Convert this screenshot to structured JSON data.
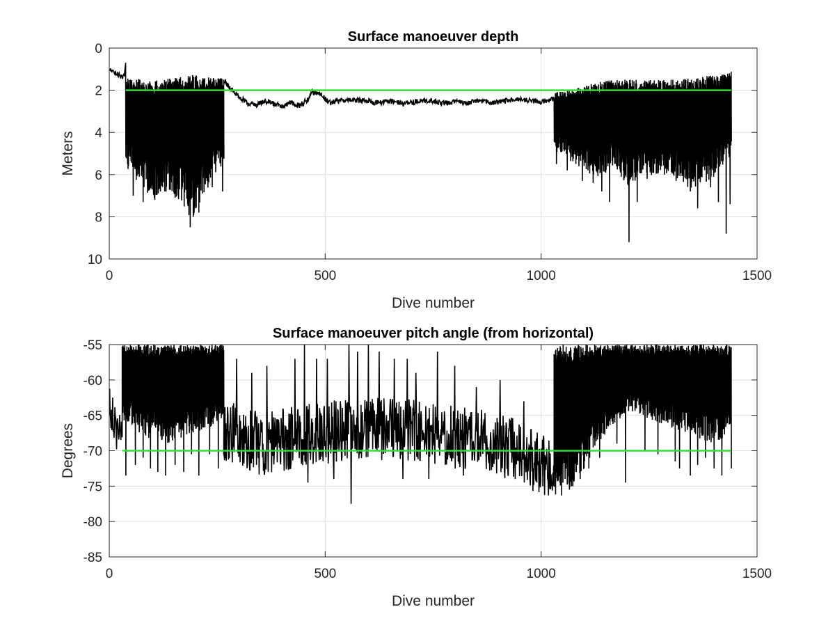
{
  "chart_data": [
    {
      "type": "line",
      "title": "Surface manoeuver depth",
      "xlabel": "Dive number",
      "ylabel": "Meters",
      "xlim": [
        0,
        1500
      ],
      "ylim": [
        0,
        10
      ],
      "y_reversed": true,
      "grid": true,
      "xticks": [
        0,
        500,
        1000,
        1500
      ],
      "yticks": [
        0,
        2,
        4,
        6,
        8,
        10
      ],
      "xtick_labels": [
        "0",
        "500",
        "1000",
        "1500"
      ],
      "ytick_labels": [
        "0",
        "2",
        "4",
        "6",
        "8",
        "10"
      ],
      "series": [
        {
          "color": "#000000",
          "segments": [
            {
              "style": "line",
              "x": [
                1,
                10,
                20,
                30,
                35,
                38
              ],
              "y": [
                1.0,
                1.15,
                1.25,
                1.35,
                1.3,
                0.7
              ]
            },
            {
              "style": "spikes",
              "x_start": 38,
              "x_end": 265,
              "upper": [
                [
                  38,
                  1.4
                ],
                [
                  80,
                  1.5
                ],
                [
                  120,
                  1.5
                ],
                [
                  160,
                  1.4
                ],
                [
                  200,
                  1.25
                ],
                [
                  240,
                  1.3
                ],
                [
                  265,
                  1.4
                ]
              ],
              "lower": [
                [
                  38,
                  5.0
                ],
                [
                  60,
                  5.5
                ],
                [
                  100,
                  6.3
                ],
                [
                  140,
                  6.0
                ],
                [
                  170,
                  6.5
                ],
                [
                  190,
                  7.3
                ],
                [
                  220,
                  6.0
                ],
                [
                  265,
                  5.0
                ]
              ],
              "extremes": [
                [
                  42,
                  5.5
                ],
                [
                  55,
                  7.0
                ],
                [
                  78,
                  7.3
                ],
                [
                  92,
                  6.7
                ],
                [
                  105,
                  7.2
                ],
                [
                  118,
                  6.8
                ],
                [
                  152,
                  7.1
                ],
                [
                  168,
                  6.7
                ],
                [
                  182,
                  7.5
                ],
                [
                  187,
                  8.5
                ],
                [
                  198,
                  7.6
                ],
                [
                  207,
                  7.8
                ],
                [
                  226,
                  6.3
                ],
                [
                  238,
                  6.6
                ],
                [
                  262,
                  6.8
                ]
              ]
            },
            {
              "style": "line",
              "x": [
                265,
                280,
                300,
                320,
                340,
                360,
                380,
                400,
                420,
                440,
                460,
                470,
                490,
                510,
                530,
                560,
                590,
                620,
                650,
                680,
                710,
                740,
                770,
                800,
                830,
                860,
                890,
                920,
                950,
                980,
                1000,
                1020,
                1030
              ],
              "y": [
                1.5,
                1.9,
                2.3,
                2.6,
                2.7,
                2.5,
                2.65,
                2.75,
                2.6,
                2.7,
                2.45,
                2.1,
                2.2,
                2.6,
                2.5,
                2.45,
                2.5,
                2.6,
                2.5,
                2.65,
                2.55,
                2.5,
                2.6,
                2.55,
                2.6,
                2.5,
                2.6,
                2.5,
                2.45,
                2.5,
                2.55,
                2.45,
                2.4
              ]
            },
            {
              "style": "spikes",
              "x_start": 1030,
              "x_end": 1440,
              "upper": [
                [
                  1030,
                  2.1
                ],
                [
                  1070,
                  2.0
                ],
                [
                  1100,
                  1.8
                ],
                [
                  1150,
                  1.5
                ],
                [
                  1200,
                  1.5
                ],
                [
                  1260,
                  1.5
                ],
                [
                  1320,
                  1.5
                ],
                [
                  1380,
                  1.3
                ],
                [
                  1440,
                  1.1
                ]
              ],
              "lower": [
                [
                  1030,
                  4.5
                ],
                [
                  1080,
                  5.0
                ],
                [
                  1130,
                  5.5
                ],
                [
                  1170,
                  5.0
                ],
                [
                  1200,
                  5.8
                ],
                [
                  1240,
                  5.5
                ],
                [
                  1300,
                  5.3
                ],
                [
                  1350,
                  6.0
                ],
                [
                  1400,
                  5.5
                ],
                [
                  1440,
                  4.5
                ]
              ],
              "extremes": [
                [
                  1035,
                  5.5
                ],
                [
                  1060,
                  5.8
                ],
                [
                  1095,
                  6.3
                ],
                [
                  1120,
                  6.4
                ],
                [
                  1140,
                  6.8
                ],
                [
                  1158,
                  7.3
                ],
                [
                  1185,
                  6.1
                ],
                [
                  1203,
                  9.2
                ],
                [
                  1222,
                  7.3
                ],
                [
                  1245,
                  6.2
                ],
                [
                  1285,
                  6.0
                ],
                [
                  1312,
                  6.3
                ],
                [
                  1345,
                  6.8
                ],
                [
                  1362,
                  7.6
                ],
                [
                  1392,
                  6.6
                ],
                [
                  1410,
                  7.3
                ],
                [
                  1428,
                  8.8
                ],
                [
                  1437,
                  7.4
                ]
              ]
            }
          ]
        },
        {
          "color": "#33dd33",
          "style": "line",
          "x": [
            38,
            1440
          ],
          "y": [
            2,
            2
          ]
        }
      ]
    },
    {
      "type": "line",
      "title": "Surface manoeuver pitch angle (from horizontal)",
      "xlabel": "Dive number",
      "ylabel": "Degrees",
      "xlim": [
        0,
        1500
      ],
      "ylim": [
        -85,
        -55
      ],
      "grid": true,
      "xticks": [
        0,
        500,
        1000,
        1500
      ],
      "yticks": [
        -55,
        -60,
        -65,
        -70,
        -75,
        -80,
        -85
      ],
      "xtick_labels": [
        "0",
        "500",
        "1000",
        "1500"
      ],
      "ytick_labels": [
        "-55",
        "-60",
        "-65",
        "-70",
        "-75",
        "-80",
        "-85"
      ],
      "series": [
        {
          "color": "#000000",
          "segments": [
            {
              "style": "noise",
              "x_start": 1,
              "x_end": 30,
              "baseline": [
                [
                  1,
                  -63
                ],
                [
                  15,
                  -66
                ],
                [
                  30,
                  -69
                ]
              ],
              "amplitude": 3.5
            },
            {
              "style": "spikes",
              "x_start": 30,
              "x_end": 265,
              "upper": [
                [
                  30,
                  -55
                ],
                [
                  265,
                  -55
                ]
              ],
              "lower": [
                [
                  30,
                  -64
                ],
                [
                  80,
                  -66
                ],
                [
                  130,
                  -67
                ],
                [
                  180,
                  -66
                ],
                [
                  230,
                  -65
                ],
                [
                  265,
                  -64
                ]
              ],
              "extremes": [
                [
                  38,
                  -73.5
                ],
                [
                  60,
                  -72
                ],
                [
                  78,
                  -71
                ],
                [
                  95,
                  -72.5
                ],
                [
                  112,
                  -73
                ],
                [
                  130,
                  -73.5
                ],
                [
                  152,
                  -72
                ],
                [
                  172,
                  -73
                ],
                [
                  190,
                  -70.5
                ],
                [
                  207,
                  -73.5
                ],
                [
                  232,
                  -70.5
                ],
                [
                  252,
                  -72.5
                ]
              ]
            },
            {
              "style": "noise",
              "x_start": 265,
              "x_end": 1030,
              "baseline": [
                [
                  265,
                  -67
                ],
                [
                  350,
                  -69
                ],
                [
                  450,
                  -68
                ],
                [
                  550,
                  -67
                ],
                [
                  650,
                  -67
                ],
                [
                  750,
                  -67.5
                ],
                [
                  850,
                  -68.5
                ],
                [
                  950,
                  -70
                ],
                [
                  1000,
                  -72
                ],
                [
                  1030,
                  -73
                ]
              ],
              "amplitude": 4.5,
              "extremes": [
                [
                  295,
                  -57
                ],
                [
                  330,
                  -59
                ],
                [
                  365,
                  -58
                ],
                [
                  430,
                  -57
                ],
                [
                  452,
                  -55
                ],
                [
                  480,
                  -57
                ],
                [
                  505,
                  -57
                ],
                [
                  555,
                  -55
                ],
                [
                  575,
                  -56
                ],
                [
                  600,
                  -55
                ],
                [
                  625,
                  -56
                ],
                [
                  660,
                  -57
                ],
                [
                  690,
                  -57
                ],
                [
                  710,
                  -59
                ],
                [
                  760,
                  -56
                ],
                [
                  800,
                  -58
                ],
                [
                  850,
                  -61
                ],
                [
                  905,
                  -60
                ],
                [
                  960,
                  -63
                ],
                [
                  460,
                  -74.5
                ],
                [
                  520,
                  -74
                ],
                [
                  560,
                  -77.5
                ],
                [
                  600,
                  -74.5
                ],
                [
                  680,
                  -74
                ],
                [
                  740,
                  -74
                ],
                [
                  820,
                  -73.5
                ],
                [
                  940,
                  -74
                ],
                [
                  990,
                  -74.5
                ]
              ]
            },
            {
              "style": "spikes",
              "x_start": 1030,
              "x_end": 1440,
              "upper": [
                [
                  1030,
                  -55
                ],
                [
                  1440,
                  -55
                ]
              ],
              "lower": [
                [
                  1030,
                  -73.5
                ],
                [
                  1060,
                  -73
                ],
                [
                  1090,
                  -71
                ],
                [
                  1120,
                  -68
                ],
                [
                  1160,
                  -65
                ],
                [
                  1200,
                  -63
                ],
                [
                  1250,
                  -64
                ],
                [
                  1300,
                  -65
                ],
                [
                  1350,
                  -66
                ],
                [
                  1400,
                  -67
                ],
                [
                  1440,
                  -66
                ]
              ],
              "extremes": [
                [
                  1050,
                  -74.5
                ],
                [
                  1070,
                  -75
                ],
                [
                  1090,
                  -74
                ],
                [
                  1110,
                  -72.5
                ],
                [
                  1135,
                  -71
                ],
                [
                  1175,
                  -69
                ],
                [
                  1195,
                  -74.5
                ],
                [
                  1240,
                  -70
                ],
                [
                  1270,
                  -70.5
                ],
                [
                  1310,
                  -71.5
                ],
                [
                  1320,
                  -72.5
                ],
                [
                  1345,
                  -73.5
                ],
                [
                  1362,
                  -72
                ],
                [
                  1380,
                  -71
                ],
                [
                  1400,
                  -72.5
                ],
                [
                  1418,
                  -73.5
                ],
                [
                  1440,
                  -72.5
                ]
              ]
            }
          ]
        },
        {
          "color": "#33dd33",
          "style": "line",
          "x": [
            30,
            1440
          ],
          "y": [
            -70,
            -70
          ]
        }
      ]
    }
  ]
}
